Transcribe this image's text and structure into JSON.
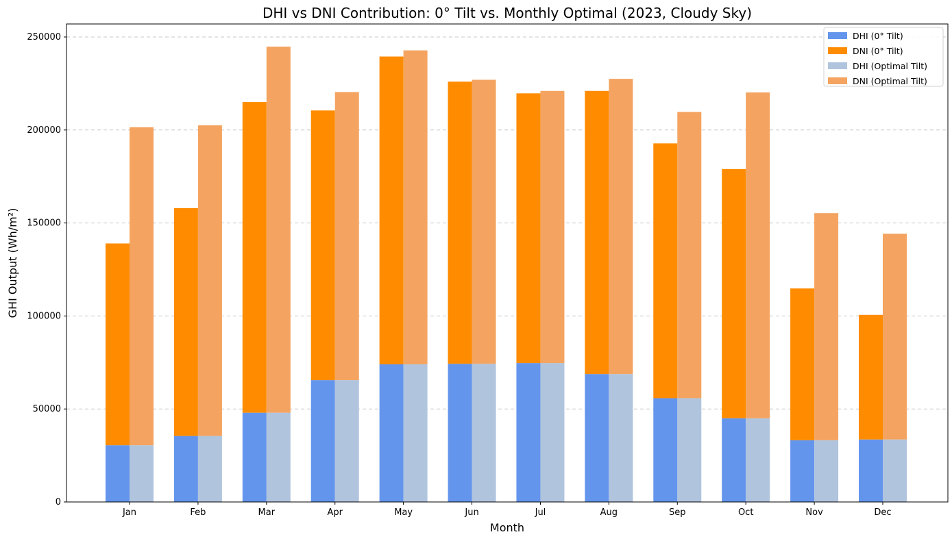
{
  "chart_data": {
    "type": "bar",
    "title": "DHI vs DNI Contribution: 0° Tilt vs. Monthly Optimal (2023, Cloudy Sky)",
    "xlabel": "Month",
    "ylabel": "GHI Output (Wh/m²)",
    "categories": [
      "Jan",
      "Feb",
      "Mar",
      "Apr",
      "May",
      "Jun",
      "Jul",
      "Aug",
      "Sep",
      "Oct",
      "Nov",
      "Dec"
    ],
    "ylim": [
      0,
      257000
    ],
    "yticks": [
      0,
      50000,
      100000,
      150000,
      200000,
      250000
    ],
    "ytick_labels": [
      "0",
      "50000",
      "100000",
      "150000",
      "200000",
      "250000"
    ],
    "grid": "horizontal dashed",
    "legend_position": "top-right",
    "stacks": [
      {
        "group": "0° Tilt",
        "bottom_series": "DHI (0° Tilt)",
        "top_series": "DNI (0° Tilt)"
      },
      {
        "group": "Optimal Tilt",
        "bottom_series": "DHI (Optimal Tilt)",
        "top_series": "DNI (Optimal Tilt)"
      }
    ],
    "series": [
      {
        "name": "DHI (0° Tilt)",
        "color": "#6495ED",
        "values": [
          30500,
          35500,
          48000,
          65500,
          74000,
          74300,
          74700,
          68800,
          55800,
          45000,
          33200,
          33600
        ]
      },
      {
        "name": "DNI (0° Tilt)",
        "color": "#FF8C00",
        "values": [
          108500,
          122500,
          167000,
          145000,
          165500,
          151700,
          145000,
          152200,
          137000,
          134000,
          81600,
          67000
        ]
      },
      {
        "name": "DHI (Optimal Tilt)",
        "color": "#B0C4DE",
        "values": [
          30500,
          35500,
          48000,
          65500,
          74000,
          74300,
          74700,
          68800,
          55800,
          45000,
          33200,
          33600
        ]
      },
      {
        "name": "DNI (Optimal Tilt)",
        "color": "#F4A460",
        "values": [
          171000,
          167000,
          196800,
          154900,
          168800,
          152700,
          146300,
          158700,
          153900,
          175200,
          122100,
          110600
        ]
      }
    ]
  }
}
